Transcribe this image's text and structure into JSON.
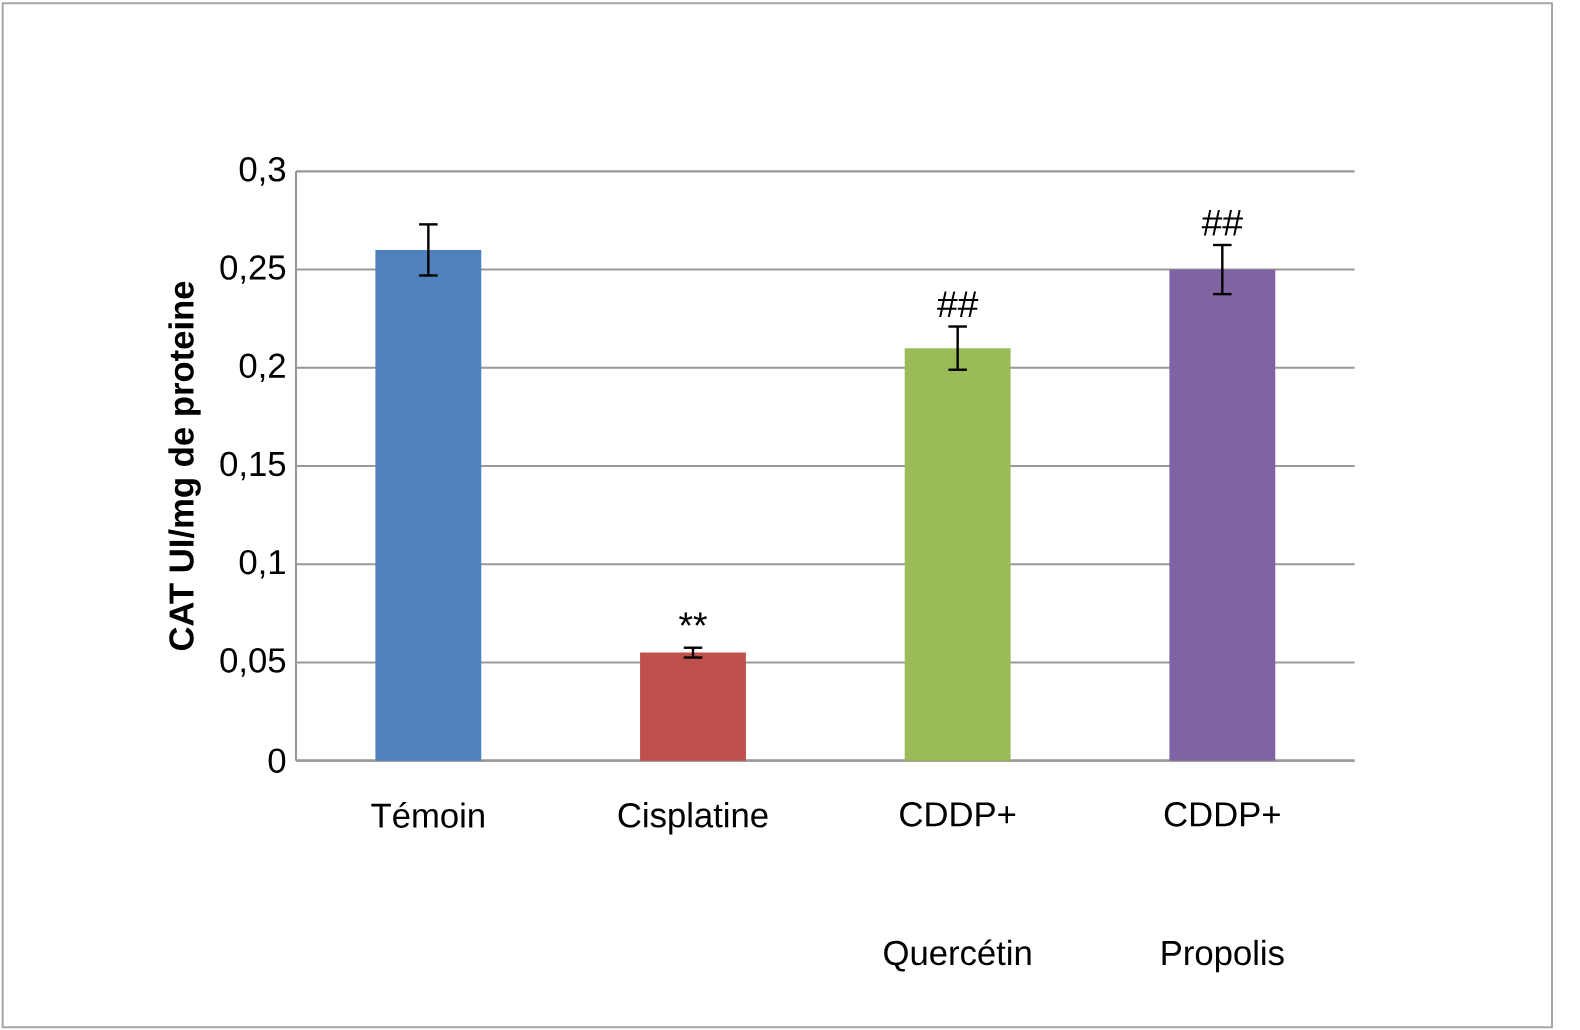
{
  "chart_data": {
    "type": "bar",
    "ylabel": "CAT  UI/mg de proteine",
    "categories": [
      "Témoin",
      "Cisplatine",
      "CDDP+ Quercétin",
      "CDDP+ Propolis"
    ],
    "values": [
      0.26,
      0.055,
      0.21,
      0.25
    ],
    "errors": [
      0.013,
      0.0025,
      0.011,
      0.0125
    ],
    "colors": [
      "#4f81bd",
      "#c0504d",
      "#9bbb59",
      "#8064a2"
    ],
    "ylim": [
      0,
      0.3
    ],
    "yticks": [
      {
        "value": 0,
        "label": "0"
      },
      {
        "value": 0.05,
        "label": "0,05"
      },
      {
        "value": 0.1,
        "label": "0,1"
      },
      {
        "value": 0.15,
        "label": "0,15"
      },
      {
        "value": 0.2,
        "label": "0,2"
      },
      {
        "value": 0.25,
        "label": "0,25"
      },
      {
        "value": 0.3,
        "label": "0,3"
      }
    ],
    "grid": "y",
    "value_labels": [
      null,
      "**",
      "##",
      "##"
    ]
  }
}
